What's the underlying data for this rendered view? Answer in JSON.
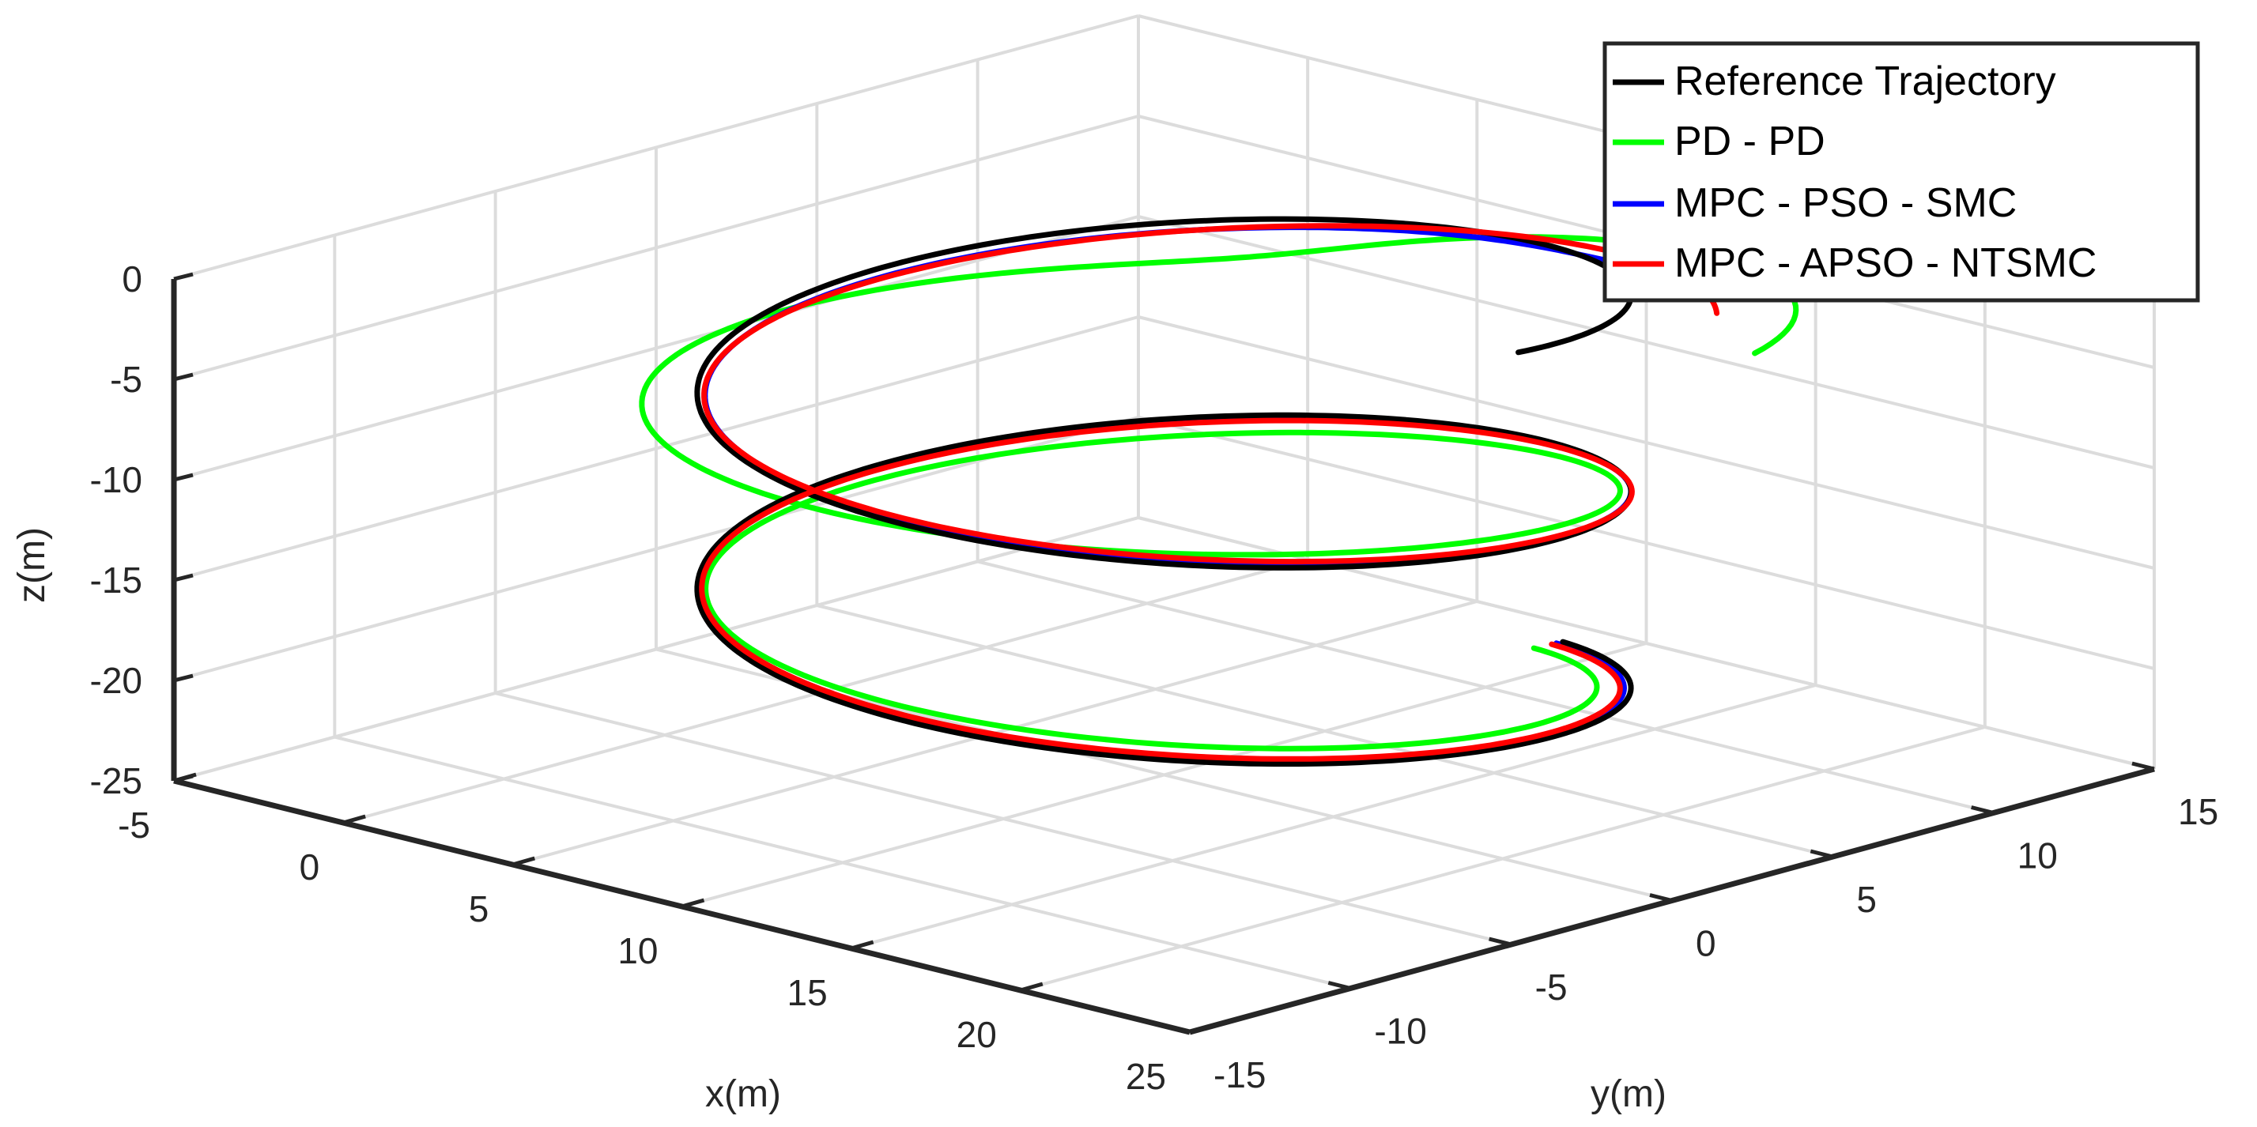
{
  "chart_data": {
    "type": "line",
    "title": "",
    "xlabel": "x(m)",
    "ylabel": "y(m)",
    "zlabel": "z(m)",
    "xlim": [
      -5,
      25
    ],
    "ylim": [
      -15,
      15
    ],
    "zlim": [
      -25,
      0
    ],
    "x_ticks": [
      "-5",
      "0",
      "5",
      "10",
      "15",
      "20",
      "25"
    ],
    "y_ticks": [
      "-15",
      "-10",
      "-5",
      "0",
      "5",
      "10",
      "15"
    ],
    "z_ticks": [
      "0",
      "-5",
      "-10",
      "-15",
      "-20",
      "-25"
    ],
    "grid": true,
    "legend_position": "top-right",
    "series": [
      {
        "name": "Reference Trajectory",
        "color": "#000000"
      },
      {
        "name": "PD - PD",
        "color": "#00ff00"
      },
      {
        "name": "MPC - PSO - SMC",
        "color": "#0000ff"
      },
      {
        "name": "MPC - APSO - NTSMC",
        "color": "#ff0000"
      }
    ]
  }
}
